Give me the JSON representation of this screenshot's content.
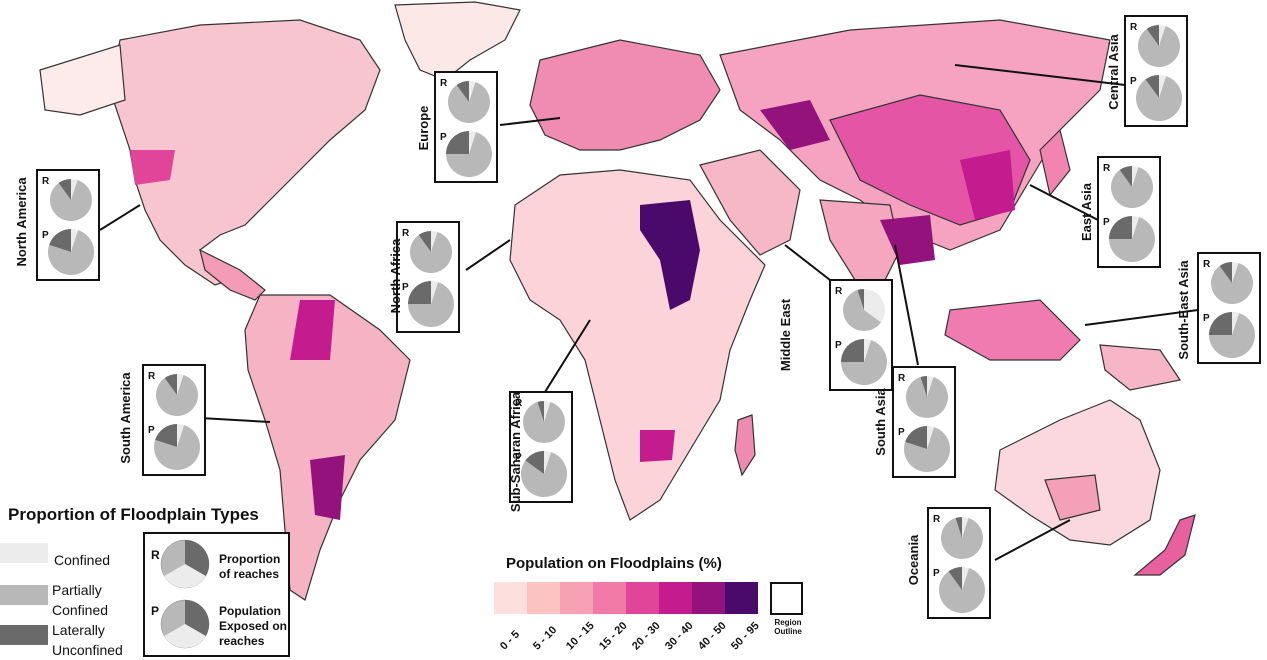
{
  "regions": [
    {
      "name": "North America",
      "key": "north_america"
    },
    {
      "name": "Europe",
      "key": "europe"
    },
    {
      "name": "Central Asia",
      "key": "central_asia"
    },
    {
      "name": "East Asia",
      "key": "east_asia"
    },
    {
      "name": "North Africa",
      "key": "north_africa"
    },
    {
      "name": "Middle East",
      "key": "middle_east"
    },
    {
      "name": "South-East Asia",
      "key": "south_east_asia"
    },
    {
      "name": "South America",
      "key": "south_america"
    },
    {
      "name": "Sub-Saharan Africa",
      "key": "sub_saharan_africa"
    },
    {
      "name": "South Asia",
      "key": "south_asia"
    },
    {
      "name": "Oceania",
      "key": "oceania"
    }
  ],
  "pie_labels": {
    "reaches": "R",
    "population": "P"
  },
  "legend": {
    "title": "Proportion of Floodplain Types",
    "types": [
      {
        "label": "Confined",
        "color": "#ececec"
      },
      {
        "label": "Partially Confined",
        "color": "#b8b8b8"
      },
      {
        "label": "Laterally Unconfined",
        "color": "#6a6a6a"
      }
    ],
    "box": {
      "r_label": "R",
      "p_label": "P",
      "r_text": "Proportion of reaches",
      "p_text": "Population Exposed on reaches"
    }
  },
  "population_scale": {
    "title": "Population on Floodplains (%)",
    "classes": [
      {
        "label": "0 - 5",
        "color": "#fde0dd"
      },
      {
        "label": "5 - 10",
        "color": "#fbc3c2"
      },
      {
        "label": "10 - 15",
        "color": "#f7a1b5"
      },
      {
        "label": "15 - 20",
        "color": "#f27aa6"
      },
      {
        "label": "20 - 30",
        "color": "#e0459a"
      },
      {
        "label": "30 - 40",
        "color": "#c41b8e"
      },
      {
        "label": "40 - 50",
        "color": "#93127c"
      },
      {
        "label": "50 - 95",
        "color": "#4a0a6b"
      }
    ],
    "outline_label": "Region Outline"
  }
}
